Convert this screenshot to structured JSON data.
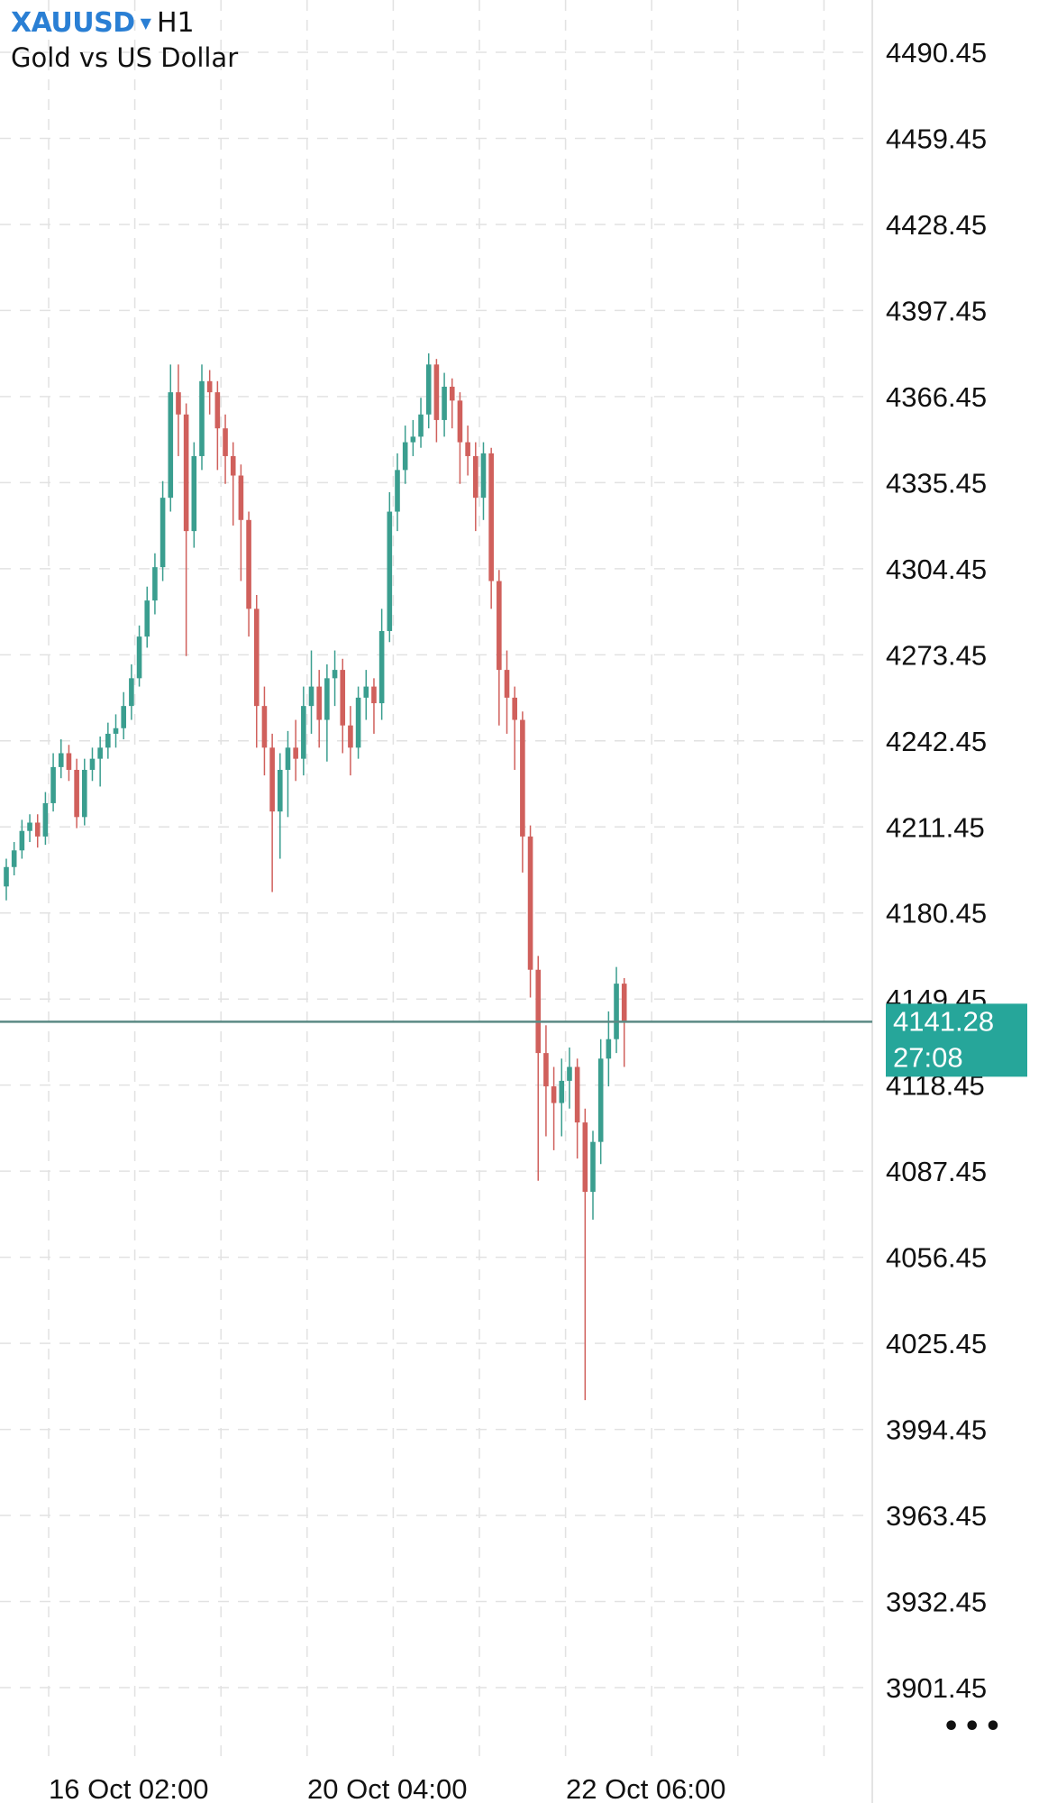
{
  "header": {
    "symbol": "XAUUSD",
    "timeframe": "H1",
    "description": "Gold vs US Dollar",
    "symbol_color": "#2a7fd4"
  },
  "current_price": {
    "price": "4141.28",
    "countdown": "27:08",
    "tag_color": "#26a69a",
    "line_color": "#5b8a84"
  },
  "more_button": "•••",
  "chart_data": {
    "type": "candlestick",
    "title": "",
    "grid": true,
    "ylim": [
      3901.45,
      4490.45
    ],
    "y_ticks": [
      "4490.45",
      "4459.45",
      "4428.45",
      "4397.45",
      "4366.45",
      "4335.45",
      "4304.45",
      "4273.45",
      "4242.45",
      "4211.45",
      "4180.45",
      "4149.45",
      "4118.45",
      "4087.45",
      "4056.45",
      "4025.45",
      "3994.45",
      "3963.45",
      "3932.45",
      "3901.45"
    ],
    "x_ticks": [
      "16 Oct 02:00",
      "20 Oct 04:00",
      "22 Oct 06:00"
    ],
    "colors": {
      "up": "#3a9e8f",
      "down": "#d0605c"
    },
    "ohlc": [
      [
        4190,
        4200,
        4185,
        4197
      ],
      [
        4197,
        4206,
        4194,
        4203
      ],
      [
        4203,
        4214,
        4200,
        4210
      ],
      [
        4210,
        4216,
        4206,
        4213
      ],
      [
        4213,
        4216,
        4204,
        4208
      ],
      [
        4208,
        4224,
        4205,
        4220
      ],
      [
        4220,
        4238,
        4217,
        4233
      ],
      [
        4233,
        4243,
        4229,
        4238
      ],
      [
        4238,
        4241,
        4228,
        4232
      ],
      [
        4232,
        4236,
        4211,
        4215
      ],
      [
        4215,
        4236,
        4212,
        4232
      ],
      [
        4232,
        4240,
        4228,
        4236
      ],
      [
        4236,
        4244,
        4226,
        4240
      ],
      [
        4240,
        4249,
        4236,
        4245
      ],
      [
        4245,
        4252,
        4240,
        4247
      ],
      [
        4247,
        4260,
        4243,
        4255
      ],
      [
        4255,
        4270,
        4250,
        4265
      ],
      [
        4265,
        4284,
        4262,
        4280
      ],
      [
        4280,
        4298,
        4276,
        4293
      ],
      [
        4293,
        4310,
        4288,
        4305
      ],
      [
        4305,
        4336,
        4300,
        4330
      ],
      [
        4330,
        4378,
        4325,
        4368
      ],
      [
        4368,
        4378,
        4345,
        4360
      ],
      [
        4360,
        4364,
        4273,
        4318
      ],
      [
        4318,
        4350,
        4312,
        4345
      ],
      [
        4345,
        4378,
        4340,
        4372
      ],
      [
        4372,
        4376,
        4360,
        4368
      ],
      [
        4368,
        4372,
        4340,
        4355
      ],
      [
        4355,
        4360,
        4335,
        4345
      ],
      [
        4345,
        4350,
        4320,
        4338
      ],
      [
        4338,
        4342,
        4300,
        4322
      ],
      [
        4322,
        4325,
        4280,
        4290
      ],
      [
        4290,
        4295,
        4240,
        4255
      ],
      [
        4255,
        4262,
        4230,
        4240
      ],
      [
        4240,
        4245,
        4188,
        4217
      ],
      [
        4217,
        4238,
        4200,
        4232
      ],
      [
        4232,
        4246,
        4215,
        4240
      ],
      [
        4240,
        4250,
        4228,
        4236
      ],
      [
        4236,
        4262,
        4230,
        4255
      ],
      [
        4255,
        4275,
        4245,
        4262
      ],
      [
        4262,
        4268,
        4240,
        4250
      ],
      [
        4250,
        4270,
        4235,
        4265
      ],
      [
        4265,
        4275,
        4255,
        4268
      ],
      [
        4268,
        4272,
        4238,
        4248
      ],
      [
        4248,
        4255,
        4230,
        4240
      ],
      [
        4240,
        4262,
        4236,
        4258
      ],
      [
        4258,
        4268,
        4250,
        4262
      ],
      [
        4262,
        4265,
        4245,
        4256
      ],
      [
        4256,
        4290,
        4250,
        4282
      ],
      [
        4282,
        4332,
        4278,
        4325
      ],
      [
        4325,
        4346,
        4318,
        4340
      ],
      [
        4340,
        4356,
        4335,
        4350
      ],
      [
        4350,
        4358,
        4345,
        4352
      ],
      [
        4352,
        4366,
        4348,
        4360
      ],
      [
        4360,
        4382,
        4355,
        4378
      ],
      [
        4378,
        4380,
        4350,
        4358
      ],
      [
        4358,
        4375,
        4352,
        4370
      ],
      [
        4370,
        4373,
        4355,
        4365
      ],
      [
        4365,
        4368,
        4335,
        4350
      ],
      [
        4350,
        4356,
        4338,
        4345
      ],
      [
        4345,
        4350,
        4318,
        4330
      ],
      [
        4330,
        4350,
        4322,
        4346
      ],
      [
        4346,
        4348,
        4290,
        4300
      ],
      [
        4300,
        4304,
        4248,
        4268
      ],
      [
        4268,
        4275,
        4245,
        4258
      ],
      [
        4258,
        4262,
        4232,
        4250
      ],
      [
        4250,
        4253,
        4195,
        4208
      ],
      [
        4208,
        4212,
        4150,
        4160
      ],
      [
        4160,
        4165,
        4084,
        4130
      ],
      [
        4130,
        4140,
        4100,
        4118
      ],
      [
        4118,
        4125,
        4095,
        4112
      ],
      [
        4112,
        4128,
        4100,
        4120
      ],
      [
        4120,
        4132,
        4110,
        4125
      ],
      [
        4125,
        4128,
        4092,
        4105
      ],
      [
        4105,
        4110,
        4005,
        4080
      ],
      [
        4080,
        4102,
        4070,
        4098
      ],
      [
        4098,
        4135,
        4090,
        4128
      ],
      [
        4128,
        4145,
        4118,
        4135
      ],
      [
        4135,
        4161,
        4130,
        4155
      ],
      [
        4155,
        4157,
        4125,
        4141
      ]
    ]
  }
}
